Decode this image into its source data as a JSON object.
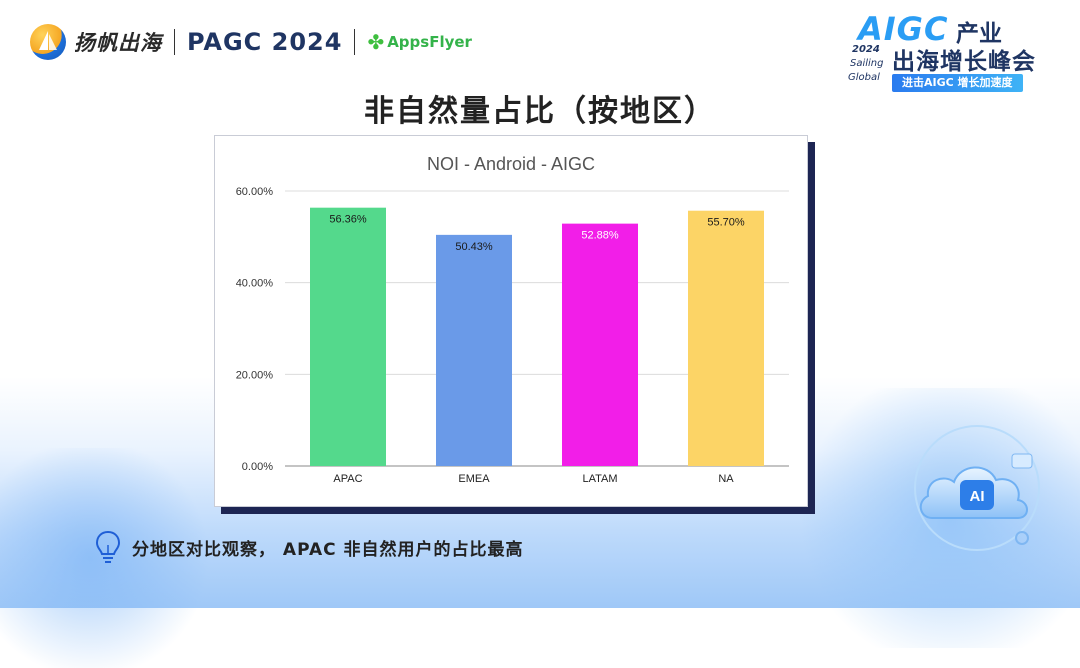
{
  "header": {
    "brand_cn": "扬帆出海",
    "pagc": "PAGC 2024",
    "appsflyer": "AppsFlyer"
  },
  "badge": {
    "aigc": "AIGC",
    "cy": "产业",
    "year": "2024",
    "sailing": "Sailing",
    "global": "Global",
    "summit": "出海增长峰会",
    "tagline": "进击AIGC 增长加速度"
  },
  "title": "非自然量占比（按地区）",
  "insight": "分地区对比观察， APAC 非自然用户的占比最高",
  "chart_data": {
    "type": "bar",
    "title": "NOI - Android - AIGC",
    "categories": [
      "APAC",
      "EMEA",
      "LATAM",
      "NA"
    ],
    "values": [
      56.36,
      50.43,
      52.88,
      55.7
    ],
    "value_labels": [
      "56.36%",
      "50.43%",
      "52.88%",
      "55.70%"
    ],
    "bar_colors": [
      "#54d98c",
      "#6a9ae8",
      "#f21ee8",
      "#fcd466"
    ],
    "label_colors": [
      "#1a1a1a",
      "#1a1a1a",
      "#ffffff",
      "#1a1a1a"
    ],
    "yticks": [
      0,
      20,
      40,
      60
    ],
    "ytick_labels": [
      "0.00%",
      "20.00%",
      "40.00%",
      "60.00%"
    ],
    "ylim": [
      0,
      60
    ],
    "xlabel": "",
    "ylabel": "",
    "grid": true
  }
}
